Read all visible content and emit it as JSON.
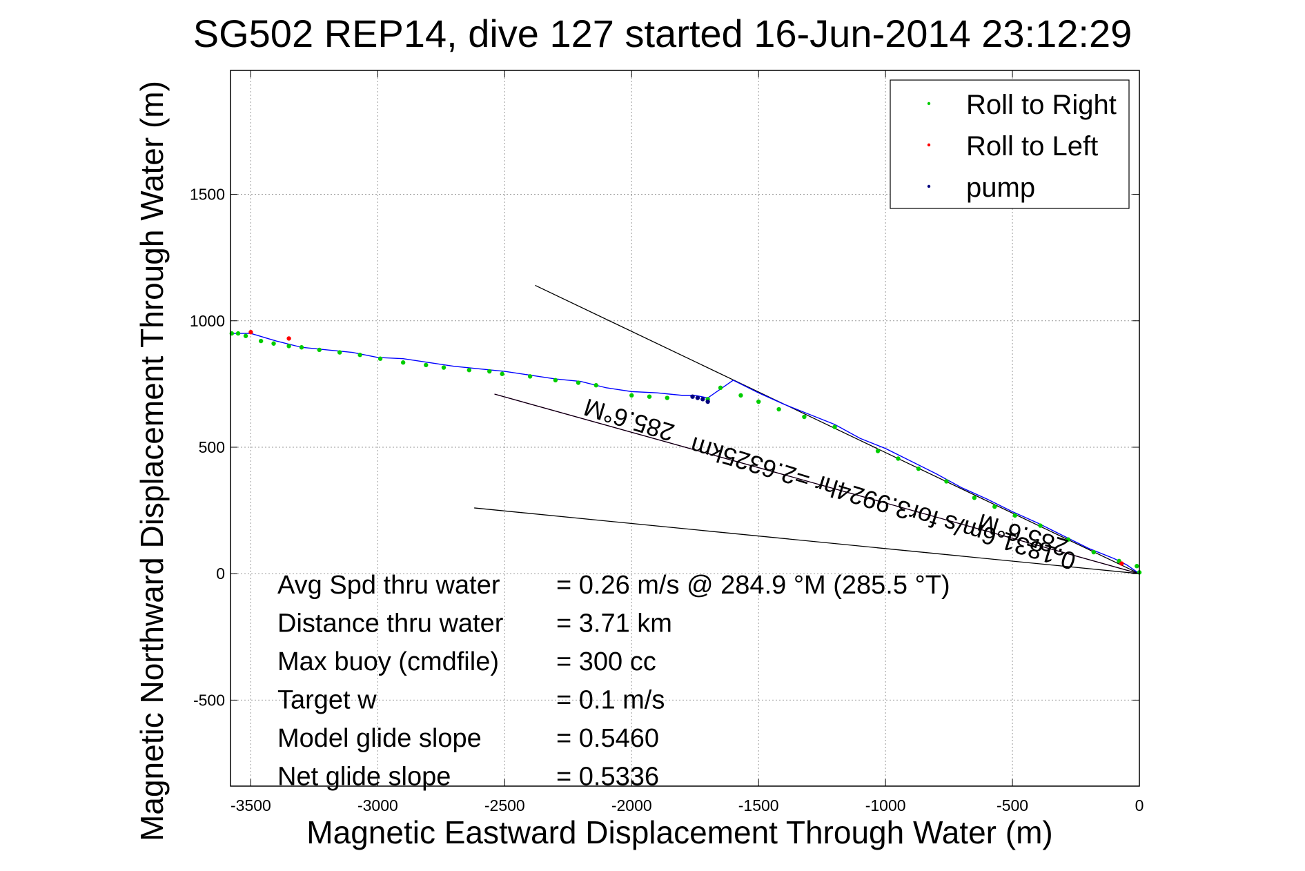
{
  "chart_data": {
    "type": "scatter",
    "title": "SG502 REP14, dive 127 started 16-Jun-2014 23:12:29",
    "xlabel": "Magnetic Eastward Displacement Through Water (m)",
    "ylabel": "Magnetic Northward Displacement Through Water (m)",
    "xlim": [
      -3580,
      0
    ],
    "ylim": [
      -840,
      1990
    ],
    "x_ticks": [
      {
        "value": -3500,
        "label": "-3500"
      },
      {
        "value": -3000,
        "label": "-3000"
      },
      {
        "value": -2500,
        "label": "-2500"
      },
      {
        "value": -2000,
        "label": "-2000"
      },
      {
        "value": -1500,
        "label": "-1500"
      },
      {
        "value": -1000,
        "label": "-1000"
      },
      {
        "value": -500,
        "label": "-500"
      },
      {
        "value": 0,
        "label": "0"
      }
    ],
    "y_ticks": [
      {
        "value": -500,
        "label": "-500"
      },
      {
        "value": 0,
        "label": "0"
      },
      {
        "value": 500,
        "label": "500"
      },
      {
        "value": 1000,
        "label": "1000"
      },
      {
        "value": 1500,
        "label": "1500"
      }
    ],
    "grid": true,
    "legend_position": "top-right",
    "legend": [
      {
        "label": "Roll to Right",
        "color": "#00cc00"
      },
      {
        "label": "Roll to Left",
        "color": "#ff0000"
      },
      {
        "label": "pump",
        "color": "#000080"
      }
    ],
    "track": {
      "color": "#0000ff",
      "x": [
        0,
        -50,
        -100,
        -200,
        -300,
        -400,
        -500,
        -600,
        -700,
        -800,
        -900,
        -1000,
        -1100,
        -1200,
        -1300,
        -1400,
        -1500,
        -1600,
        -1700,
        -1750,
        -1800,
        -1900,
        -2000,
        -2100,
        -2200,
        -2300,
        -2400,
        -2500,
        -2600,
        -2700,
        -2800,
        -2900,
        -3000,
        -3100,
        -3200,
        -3300,
        -3400,
        -3500,
        -3580
      ],
      "y": [
        0,
        35,
        60,
        100,
        150,
        200,
        245,
        295,
        340,
        395,
        445,
        495,
        535,
        590,
        630,
        670,
        715,
        765,
        695,
        705,
        705,
        715,
        720,
        735,
        760,
        770,
        785,
        800,
        810,
        820,
        835,
        850,
        855,
        875,
        885,
        895,
        920,
        950,
        950
      ]
    },
    "roll_right_points": {
      "x": [
        0,
        -10,
        -80,
        -180,
        -280,
        -390,
        -490,
        -570,
        -650,
        -760,
        -870,
        -950,
        -1030,
        -1200,
        -1320,
        -1420,
        -1500,
        -1570,
        -1650,
        -1700,
        -1860,
        -1930,
        -2000,
        -2140,
        -2210,
        -2300,
        -2400,
        -2510,
        -2560,
        -2640,
        -2740,
        -2810,
        -2900,
        -2990,
        -3070,
        -3150,
        -3230,
        -3300,
        -3350,
        -3410,
        -3460,
        -3520,
        -3550,
        -3575
      ],
      "y": [
        5,
        30,
        50,
        85,
        135,
        190,
        230,
        265,
        300,
        365,
        415,
        455,
        485,
        580,
        620,
        650,
        680,
        705,
        735,
        690,
        695,
        700,
        705,
        745,
        755,
        765,
        780,
        790,
        800,
        805,
        815,
        825,
        835,
        850,
        865,
        875,
        885,
        895,
        900,
        910,
        920,
        940,
        950,
        950
      ]
    },
    "roll_left_points": {
      "x": [
        -3500,
        -3350,
        -70
      ],
      "y": [
        955,
        930,
        40
      ]
    },
    "pump_points": {
      "x": [
        -1760,
        -1740,
        -1720,
        -1700
      ],
      "y": [
        700,
        695,
        690,
        680
      ]
    },
    "lines": [
      {
        "color": "#000000",
        "x": [
          0,
          -2380
        ],
        "y": [
          0,
          1140
        ]
      },
      {
        "color": "#000000",
        "x": [
          0,
          -2620
        ],
        "y": [
          0,
          260
        ]
      },
      {
        "color": "#ff00ff",
        "x": [
          0,
          -2540
        ],
        "y": [
          0,
          710
        ]
      },
      {
        "color": "#000000",
        "x": [
          0,
          -2540
        ],
        "y": [
          0,
          710
        ]
      }
    ],
    "annotations": [
      {
        "text": "285.6°M",
        "x": -2000,
        "y": 640,
        "rotate": 197,
        "color": "#000000"
      },
      {
        "text": "0.1831 6m/s for3.9924hr =2.6325km",
        "x": -1000,
        "y": 310,
        "rotate": 197,
        "color": "#000000"
      },
      {
        "text": "285.6°M",
        "x": -450,
        "y": 185,
        "rotate": 197,
        "color": "#000000"
      }
    ],
    "stats": [
      {
        "label": "Avg Spd thru water",
        "value": "=  0.26 m/s @ 284.9 °M (285.5 °T)"
      },
      {
        "label": "Distance thru water",
        "value": "=  3.71 km"
      },
      {
        "label": "Max buoy (cmdfile)",
        "value": "= 300 cc"
      },
      {
        "label": "Target w",
        "value": "= 0.1 m/s"
      },
      {
        "label": "Model glide slope",
        "value": "= 0.5460"
      },
      {
        "label": "Net glide slope",
        "value": "= 0.5336"
      }
    ]
  }
}
